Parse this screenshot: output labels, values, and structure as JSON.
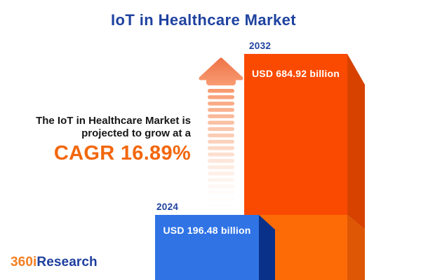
{
  "title": "IoT in Healthcare Market",
  "annotation": {
    "line1": "The IoT in Healthcare Market is",
    "line2": "projected to grow at a",
    "cagr": "CAGR 16.89%"
  },
  "brand": {
    "prefix": "360i",
    "suffix": "Research"
  },
  "colors": {
    "title_blue": "#1E429F",
    "year_label_blue": "#1E429F",
    "body_text": "#161616",
    "cagr_orange": "#F2670D",
    "brand_orange": "#F57E20",
    "brand_blue": "#1E3F9E",
    "bar_2024_front": "#2F73E5",
    "bar_2024_side": "#0A3189",
    "bar_2032_front_top": "#FA4A02",
    "bar_2032_front_bottom": "#FC6B06",
    "bar_2032_side_top": "#D74200",
    "bar_2032_side_bottom": "#DE5704"
  },
  "chart_data": {
    "type": "bar",
    "categories": [
      "2024",
      "2032"
    ],
    "values": [
      196.48,
      684.92
    ],
    "unit": "USD billion",
    "value_labels": [
      "USD 196.48 billion",
      "USD 684.92 billion"
    ],
    "title": "IoT in Healthcare Market",
    "annotations": [
      "The IoT in Healthcare Market is projected to grow at a",
      "CAGR 16.89%"
    ],
    "cagr_percent": 16.89,
    "xlabel": "",
    "ylabel": "",
    "legend": false,
    "axes_hidden": true,
    "bar_colors": [
      "#2F73E5",
      "#FA4A02"
    ]
  }
}
